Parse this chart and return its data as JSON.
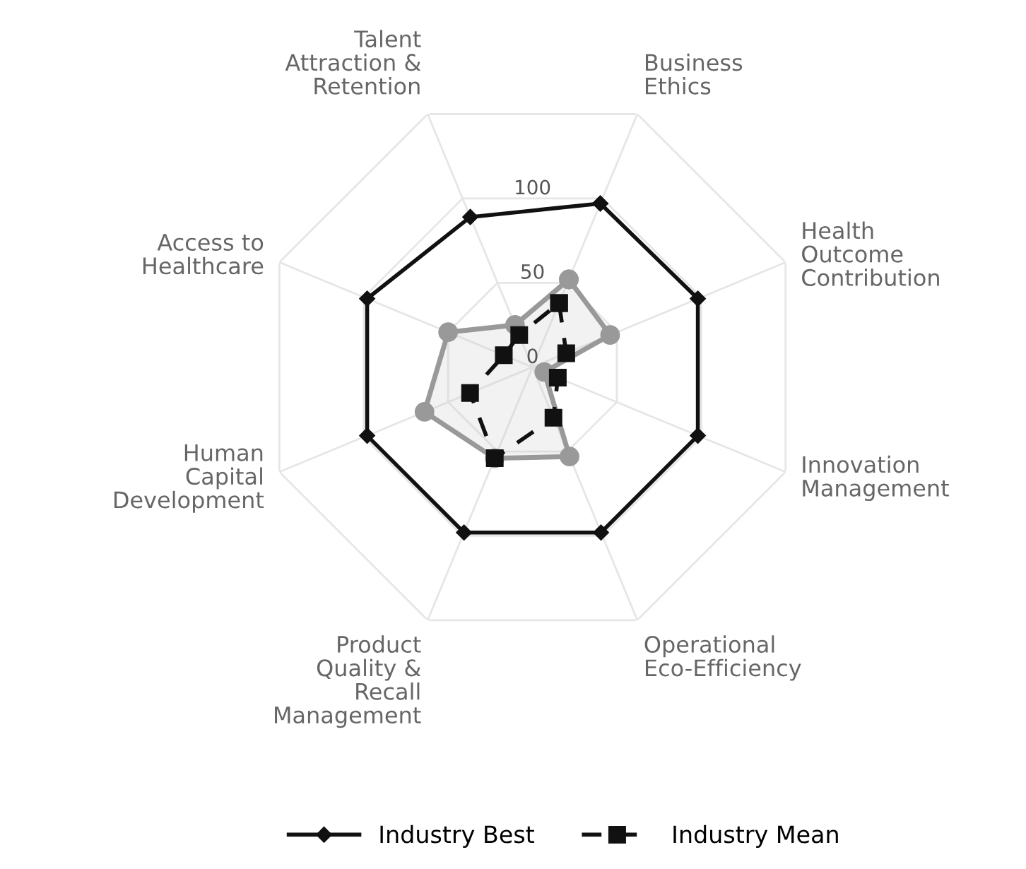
{
  "chart_data": {
    "type": "radar",
    "categories": [
      "Business Ethics",
      "Health Outcome Contribution",
      "Innovation Management",
      "Operational Eco-Efficiency",
      "Product Quality & Recall Management",
      "Human Capital Development",
      "Access to Healthcare",
      "Talent Attraction & Retention"
    ],
    "series": [
      {
        "color": "#999999",
        "marker": "circle",
        "line_style": "solid",
        "values": [
          52,
          46,
          7,
          53,
          54,
          64,
          50,
          25
        ]
      },
      {
        "name": "Industry Best",
        "color": "#111111",
        "marker": "diamond",
        "line_style": "solid",
        "values": [
          97,
          98,
          98,
          98,
          98,
          98,
          98,
          89
        ]
      },
      {
        "name": "Industry Mean",
        "color": "#111111",
        "marker": "square",
        "line_style": "dashed",
        "values": [
          38,
          20,
          15,
          30,
          54,
          37,
          17,
          19
        ]
      }
    ],
    "ylim": [
      0,
      150
    ],
    "yticks": [
      0,
      50,
      100
    ],
    "grid": true,
    "legend": "bottom"
  }
}
